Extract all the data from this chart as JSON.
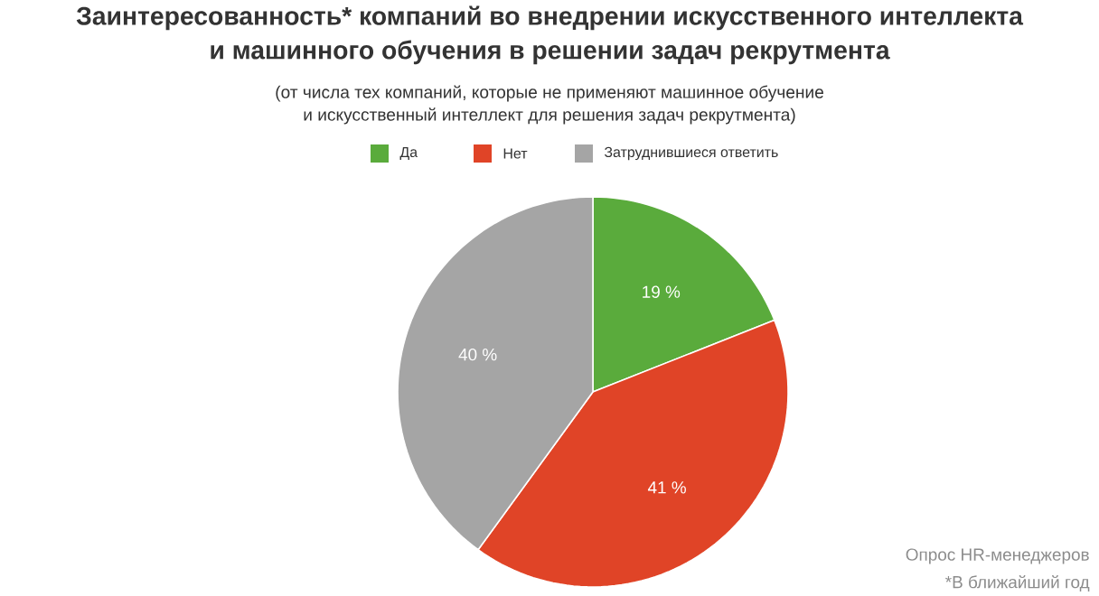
{
  "chart_data": {
    "type": "pie",
    "title": "Заинтересованность* компаний во внедрении искусственного интеллекта\nи машинного обучения в решении задач рекрутмента",
    "subtitle": "(от числа тех компаний, которые не применяют машинное обучение\nи искусственный интеллект для решения задач рекрутмента)",
    "categories": [
      "Да",
      "Нет",
      "Затруднившиеся ответить"
    ],
    "values": [
      19,
      41,
      40
    ],
    "value_labels": [
      "19 %",
      "41 %",
      "40 %"
    ],
    "colors": [
      "#5aab3c",
      "#e04427",
      "#a5a5a5"
    ],
    "legend": "top",
    "annotations": [
      "Опрос HR-менеджеров",
      "*В ближайший год"
    ]
  }
}
